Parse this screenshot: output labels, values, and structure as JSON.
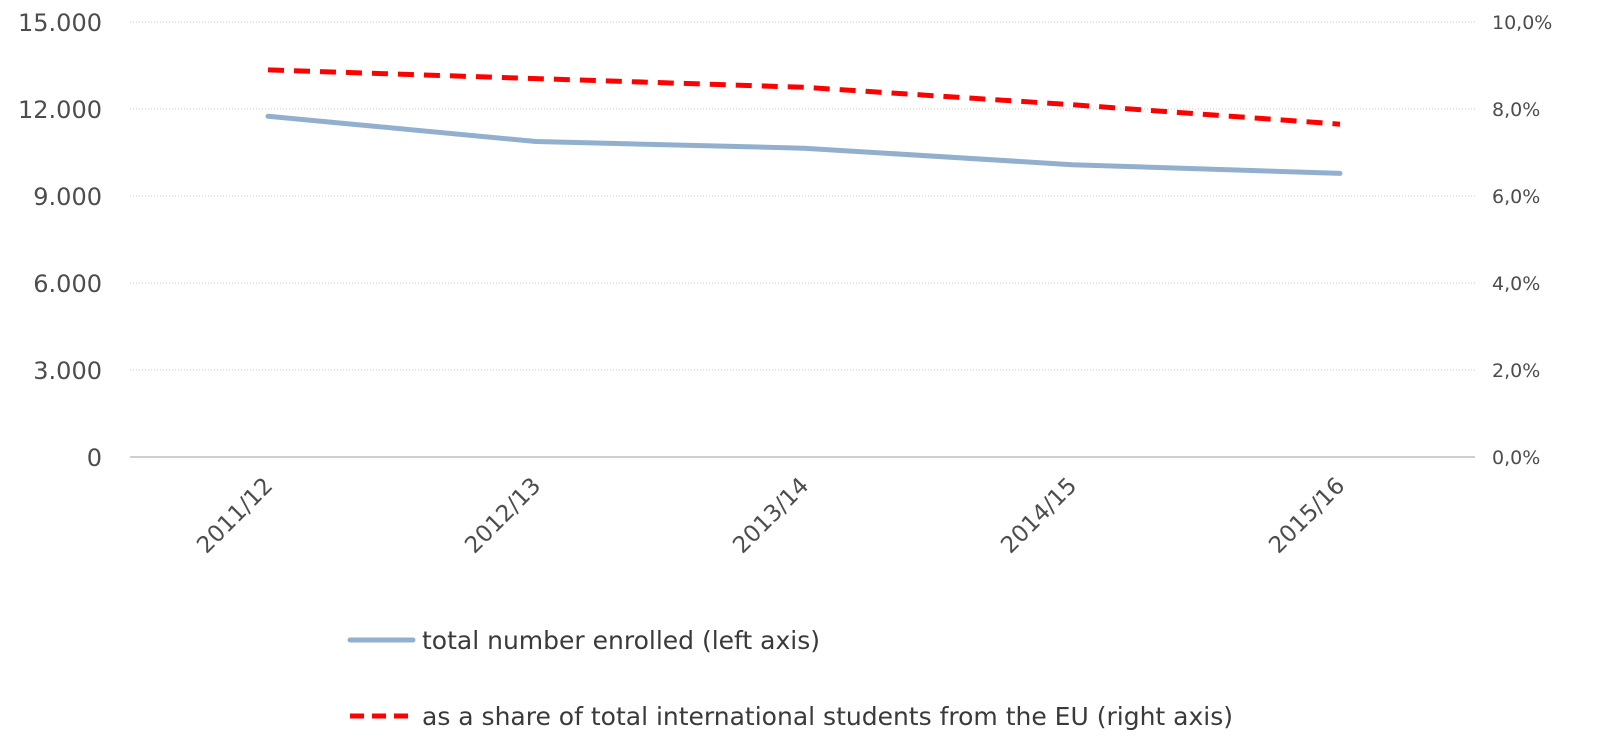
{
  "chart_data": {
    "type": "line",
    "categories": [
      "2011/12",
      "2012/13",
      "2013/14",
      "2014/15",
      "2015/16"
    ],
    "left_axis": {
      "ylim": [
        0,
        15000
      ],
      "ticks": [
        0,
        3000,
        6000,
        9000,
        12000,
        15000
      ],
      "tick_labels": [
        "0",
        "3.000",
        "6.000",
        "9.000",
        "12.000",
        "15.000"
      ]
    },
    "right_axis": {
      "ylim": [
        0,
        0.1
      ],
      "ticks": [
        0,
        0.02,
        0.04,
        0.06,
        0.08,
        0.1
      ],
      "tick_labels": [
        "0,0%",
        "2,0%",
        "4,0%",
        "6,0%",
        "8,0%",
        "10,0%"
      ]
    },
    "series": [
      {
        "name": "total number enrolled (left axis)",
        "axis": "left",
        "style": "solid",
        "color": "#92b0cd",
        "values": [
          11750,
          10880,
          10650,
          10080,
          9780
        ]
      },
      {
        "name": "as a share of total international students from the EU (right axis)",
        "axis": "right",
        "style": "dashed",
        "color": "#ff0000",
        "values": [
          0.089,
          0.087,
          0.085,
          0.081,
          0.0765
        ]
      }
    ],
    "grid": true,
    "legend_position": "bottom"
  }
}
